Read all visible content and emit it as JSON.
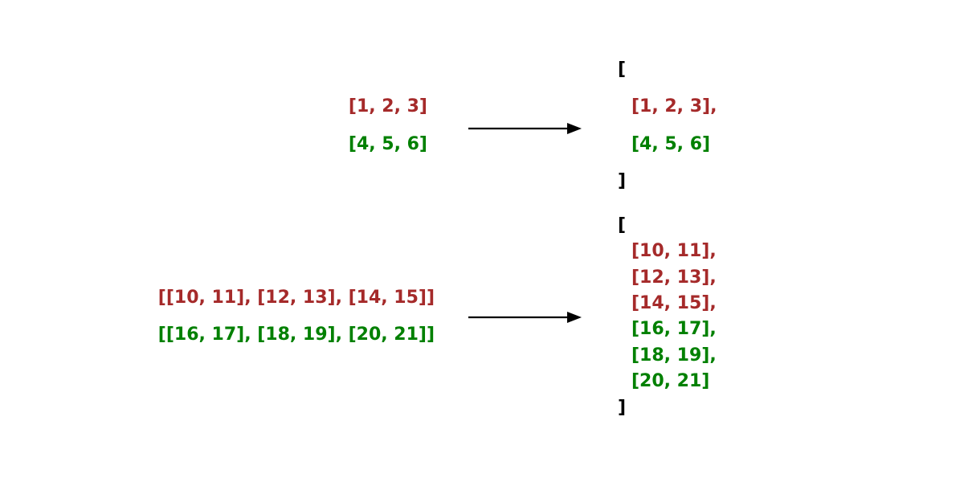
{
  "colors": {
    "first": "#a52a2a",
    "second": "#008000",
    "bracket": "#000000",
    "arrow": "#000000"
  },
  "examples": [
    {
      "inputs": [
        "[1, 2, 3]",
        "[4, 5, 6]"
      ],
      "output": {
        "open": "[",
        "items": [
          "[1, 2, 3],",
          "[4, 5, 6]"
        ],
        "close": "]"
      }
    },
    {
      "inputs": [
        "[[10, 11], [12, 13], [14, 15]]",
        "[[16, 17], [18, 19], [20, 21]]"
      ],
      "output": {
        "open": "[",
        "items": [
          "[10, 11],",
          "[12, 13],",
          "[14, 15],",
          "[16, 17],",
          "[18, 19],",
          "[20, 21]"
        ],
        "close": "]"
      }
    }
  ]
}
